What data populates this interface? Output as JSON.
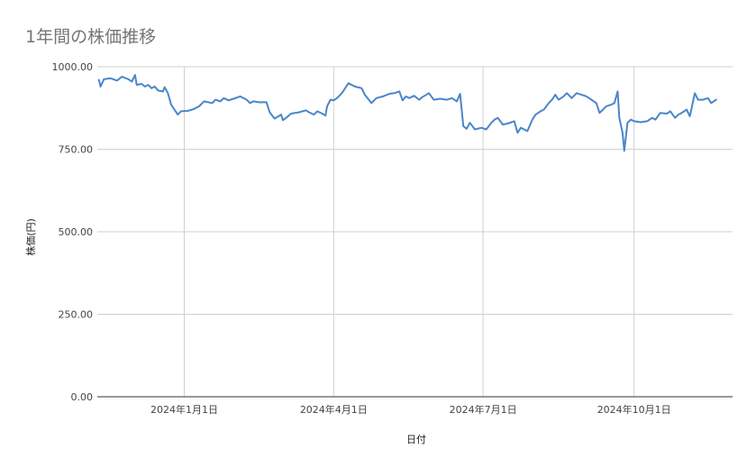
{
  "chart_data": {
    "type": "line",
    "title": "1年間の株価推移",
    "xlabel": "日付",
    "ylabel": "株価(円)",
    "ylim": [
      0,
      1000
    ],
    "y_ticks": [
      "0.00",
      "250.00",
      "500.00",
      "750.00",
      "1000.00"
    ],
    "x_ticks": [
      "2024年1月1日",
      "2024年4月1日",
      "2024年7月1日",
      "2024年10月1日"
    ],
    "x_tick_dates": [
      "2024-01-01",
      "2024-04-01",
      "2024-07-01",
      "2024-10-01"
    ],
    "x_range": [
      "2023-11-09",
      "2024-11-30"
    ],
    "grid": true,
    "legend": "none",
    "colors": {
      "line": "#4a86c8",
      "grid": "#d0d0d0",
      "axis": "#333333",
      "title": "#757575"
    },
    "series": [
      {
        "points": [
          [
            "2023-11-10",
            960
          ],
          [
            "2023-11-11",
            940
          ],
          [
            "2023-11-13",
            962
          ],
          [
            "2023-11-17",
            965
          ],
          [
            "2023-11-21",
            958
          ],
          [
            "2023-11-24",
            970
          ],
          [
            "2023-11-28",
            962
          ],
          [
            "2023-11-30",
            955
          ],
          [
            "2023-12-02",
            975
          ],
          [
            "2023-12-03",
            945
          ],
          [
            "2023-12-06",
            948
          ],
          [
            "2023-12-08",
            940
          ],
          [
            "2023-12-10",
            945
          ],
          [
            "2023-12-12",
            935
          ],
          [
            "2023-12-14",
            940
          ],
          [
            "2023-12-16",
            928
          ],
          [
            "2023-12-19",
            925
          ],
          [
            "2023-12-20",
            938
          ],
          [
            "2023-12-22",
            920
          ],
          [
            "2023-12-24",
            885
          ],
          [
            "2023-12-26",
            870
          ],
          [
            "2023-12-28",
            855
          ],
          [
            "2023-12-30",
            865
          ],
          [
            "2024-01-03",
            866
          ],
          [
            "2024-01-07",
            872
          ],
          [
            "2024-01-10",
            880
          ],
          [
            "2024-01-13",
            895
          ],
          [
            "2024-01-18",
            890
          ],
          [
            "2024-01-20",
            900
          ],
          [
            "2024-01-23",
            895
          ],
          [
            "2024-01-25",
            905
          ],
          [
            "2024-01-28",
            898
          ],
          [
            "2024-01-31",
            903
          ],
          [
            "2024-02-04",
            910
          ],
          [
            "2024-02-08",
            900
          ],
          [
            "2024-02-10",
            890
          ],
          [
            "2024-02-12",
            895
          ],
          [
            "2024-02-16",
            892
          ],
          [
            "2024-02-20",
            893
          ],
          [
            "2024-02-22",
            862
          ],
          [
            "2024-02-25",
            843
          ],
          [
            "2024-02-29",
            855
          ],
          [
            "2024-03-01",
            838
          ],
          [
            "2024-03-03",
            845
          ],
          [
            "2024-03-06",
            858
          ],
          [
            "2024-03-11",
            862
          ],
          [
            "2024-03-15",
            868
          ],
          [
            "2024-03-17",
            862
          ],
          [
            "2024-03-20",
            855
          ],
          [
            "2024-03-22",
            865
          ],
          [
            "2024-03-25",
            858
          ],
          [
            "2024-03-27",
            852
          ],
          [
            "2024-03-28",
            880
          ],
          [
            "2024-03-30",
            900
          ],
          [
            "2024-04-01",
            898
          ],
          [
            "2024-04-03",
            905
          ],
          [
            "2024-04-06",
            920
          ],
          [
            "2024-04-10",
            950
          ],
          [
            "2024-04-14",
            940
          ],
          [
            "2024-04-18",
            935
          ],
          [
            "2024-04-20",
            915
          ],
          [
            "2024-04-24",
            890
          ],
          [
            "2024-04-27",
            905
          ],
          [
            "2024-05-01",
            910
          ],
          [
            "2024-05-05",
            918
          ],
          [
            "2024-05-08",
            920
          ],
          [
            "2024-05-11",
            925
          ],
          [
            "2024-05-13",
            898
          ],
          [
            "2024-05-15",
            910
          ],
          [
            "2024-05-17",
            905
          ],
          [
            "2024-05-20",
            912
          ],
          [
            "2024-05-23",
            900
          ],
          [
            "2024-05-25",
            908
          ],
          [
            "2024-05-29",
            920
          ],
          [
            "2024-06-01",
            900
          ],
          [
            "2024-06-05",
            903
          ],
          [
            "2024-06-09",
            900
          ],
          [
            "2024-06-12",
            905
          ],
          [
            "2024-06-15",
            895
          ],
          [
            "2024-06-17",
            918
          ],
          [
            "2024-06-19",
            820
          ],
          [
            "2024-06-21",
            812
          ],
          [
            "2024-06-23",
            830
          ],
          [
            "2024-06-26",
            810
          ],
          [
            "2024-06-30",
            815
          ],
          [
            "2024-07-03",
            810
          ],
          [
            "2024-07-06",
            830
          ],
          [
            "2024-07-08",
            840
          ],
          [
            "2024-07-10",
            845
          ],
          [
            "2024-07-13",
            825
          ],
          [
            "2024-07-16",
            828
          ],
          [
            "2024-07-20",
            835
          ],
          [
            "2024-07-22",
            800
          ],
          [
            "2024-07-24",
            815
          ],
          [
            "2024-07-28",
            805
          ],
          [
            "2024-07-31",
            840
          ],
          [
            "2024-08-02",
            855
          ],
          [
            "2024-08-05",
            865
          ],
          [
            "2024-08-07",
            870
          ],
          [
            "2024-08-10",
            890
          ],
          [
            "2024-08-12",
            900
          ],
          [
            "2024-08-14",
            915
          ],
          [
            "2024-08-16",
            900
          ],
          [
            "2024-08-19",
            910
          ],
          [
            "2024-08-21",
            920
          ],
          [
            "2024-08-24",
            905
          ],
          [
            "2024-08-27",
            920
          ],
          [
            "2024-08-30",
            915
          ],
          [
            "2024-09-02",
            910
          ],
          [
            "2024-09-05",
            900
          ],
          [
            "2024-09-08",
            890
          ],
          [
            "2024-09-10",
            860
          ],
          [
            "2024-09-12",
            870
          ],
          [
            "2024-09-14",
            880
          ],
          [
            "2024-09-17",
            885
          ],
          [
            "2024-09-19",
            890
          ],
          [
            "2024-09-21",
            925
          ],
          [
            "2024-09-22",
            845
          ],
          [
            "2024-09-24",
            800
          ],
          [
            "2024-09-25",
            745
          ],
          [
            "2024-09-27",
            830
          ],
          [
            "2024-09-29",
            840
          ],
          [
            "2024-10-01",
            835
          ],
          [
            "2024-10-05",
            832
          ],
          [
            "2024-10-09",
            835
          ],
          [
            "2024-10-12",
            845
          ],
          [
            "2024-10-14",
            840
          ],
          [
            "2024-10-17",
            860
          ],
          [
            "2024-10-21",
            858
          ],
          [
            "2024-10-23",
            865
          ],
          [
            "2024-10-26",
            845
          ],
          [
            "2024-10-28",
            855
          ],
          [
            "2024-10-30",
            860
          ],
          [
            "2024-11-02",
            870
          ],
          [
            "2024-11-04",
            850
          ],
          [
            "2024-11-07",
            920
          ],
          [
            "2024-11-09",
            900
          ],
          [
            "2024-11-12",
            900
          ],
          [
            "2024-11-15",
            905
          ],
          [
            "2024-11-17",
            890
          ],
          [
            "2024-11-20",
            900
          ]
        ]
      }
    ]
  }
}
